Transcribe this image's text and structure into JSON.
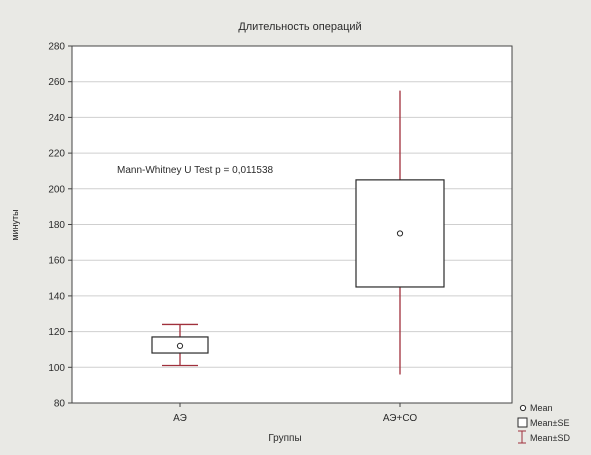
{
  "chart_data": {
    "type": "box",
    "title": "Длительность операций",
    "xlabel": "Группы",
    "ylabel": "минуты",
    "ylim": [
      80,
      280
    ],
    "yticks": [
      80,
      100,
      120,
      140,
      160,
      180,
      200,
      220,
      240,
      260,
      280
    ],
    "grid": true,
    "categories": [
      "АЭ",
      "АЭ+СО"
    ],
    "boxes": [
      {
        "category": "АЭ",
        "mean": 112,
        "se_low": 108,
        "se_high": 117,
        "sd_low": 101,
        "sd_high": 124
      },
      {
        "category": "АЭ+СО",
        "mean": 175,
        "se_low": 145,
        "se_high": 205,
        "sd_low": 96,
        "sd_high": 255
      }
    ],
    "annotation": "Mann-Whitney U Test p = 0,011538",
    "legend": {
      "position": "bottom-right",
      "items": [
        "Mean",
        "Mean±SE",
        "Mean±SD"
      ]
    },
    "colors": {
      "background": "#e9e9e5",
      "plot_bg": "#ffffff",
      "grid": "#cfcfcf",
      "whisker": "#a0303c",
      "box_edge": "#2a2a2a",
      "text": "#2b2b2b"
    }
  }
}
